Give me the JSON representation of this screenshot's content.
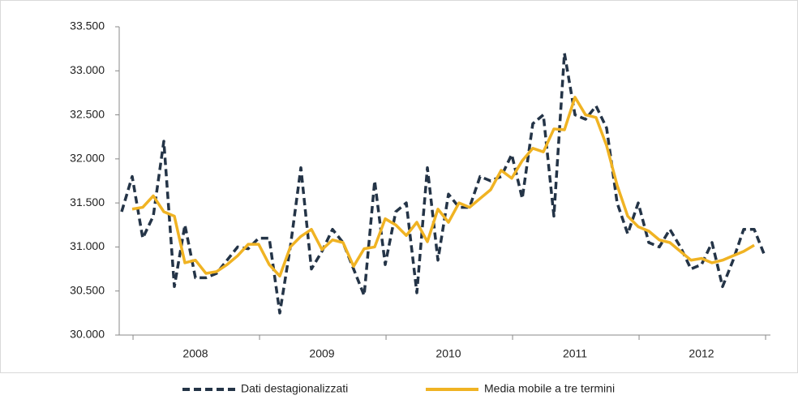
{
  "chart_data": {
    "type": "line",
    "categories": [
      null,
      null,
      null,
      null,
      null,
      null,
      null,
      "2008",
      null,
      null,
      null,
      null,
      null,
      null,
      null,
      null,
      null,
      null,
      null,
      "2009",
      null,
      null,
      null,
      null,
      null,
      null,
      null,
      null,
      null,
      null,
      null,
      "2010",
      null,
      null,
      null,
      null,
      null,
      null,
      null,
      null,
      null,
      null,
      null,
      "2011",
      null,
      null,
      null,
      null,
      null,
      null,
      null,
      null,
      null,
      null,
      null,
      "2012",
      null,
      null,
      null,
      null,
      null,
      null
    ],
    "series": [
      {
        "name": "Dati destagionalizzati",
        "color": "#243447",
        "dashed": true,
        "values": [
          31400,
          31800,
          31100,
          31350,
          32200,
          30550,
          31250,
          30650,
          30650,
          30700,
          30850,
          31000,
          30980,
          31100,
          31100,
          30250,
          31000,
          31900,
          30750,
          30950,
          31200,
          31050,
          30750,
          30450,
          31750,
          30800,
          31400,
          31500,
          30480,
          31900,
          30850,
          31600,
          31450,
          31450,
          31800,
          31750,
          31800,
          32050,
          31550,
          32400,
          32500,
          31350,
          33200,
          32500,
          32450,
          32600,
          32350,
          31500,
          31150,
          31500,
          31050,
          31000,
          31200,
          31000,
          30750,
          30800,
          31050,
          30550,
          30850,
          31200,
          31200,
          30900
        ]
      },
      {
        "name": "Media mobile a tre termini",
        "color": "#f0b323",
        "dashed": false,
        "values": [
          null,
          31430,
          31450,
          31580,
          31400,
          31350,
          30820,
          30850,
          30700,
          30720,
          30800,
          30900,
          31030,
          31030,
          30800,
          30670,
          31000,
          31120,
          31200,
          30970,
          31080,
          31050,
          30780,
          30980,
          31000,
          31320,
          31250,
          31130,
          31280,
          31060,
          31430,
          31280,
          31500,
          31450,
          31550,
          31650,
          31870,
          31780,
          31980,
          32120,
          32080,
          32340,
          32330,
          32700,
          32500,
          32470,
          32150,
          31700,
          31350,
          31230,
          31180,
          31080,
          31050,
          30950,
          30850,
          30870,
          30820,
          30850,
          30900,
          30950,
          31020,
          null
        ]
      }
    ],
    "ylim": [
      30000,
      33500
    ],
    "yticks": [
      {
        "value": 30000,
        "label": "30.000"
      },
      {
        "value": 30500,
        "label": "30.500"
      },
      {
        "value": 31000,
        "label": "31.000"
      },
      {
        "value": 31500,
        "label": "31.500"
      },
      {
        "value": 32000,
        "label": "32.000"
      },
      {
        "value": 32500,
        "label": "32.500"
      },
      {
        "value": 33000,
        "label": "33.000"
      },
      {
        "value": 33500,
        "label": "33.500"
      }
    ],
    "grid": false
  }
}
